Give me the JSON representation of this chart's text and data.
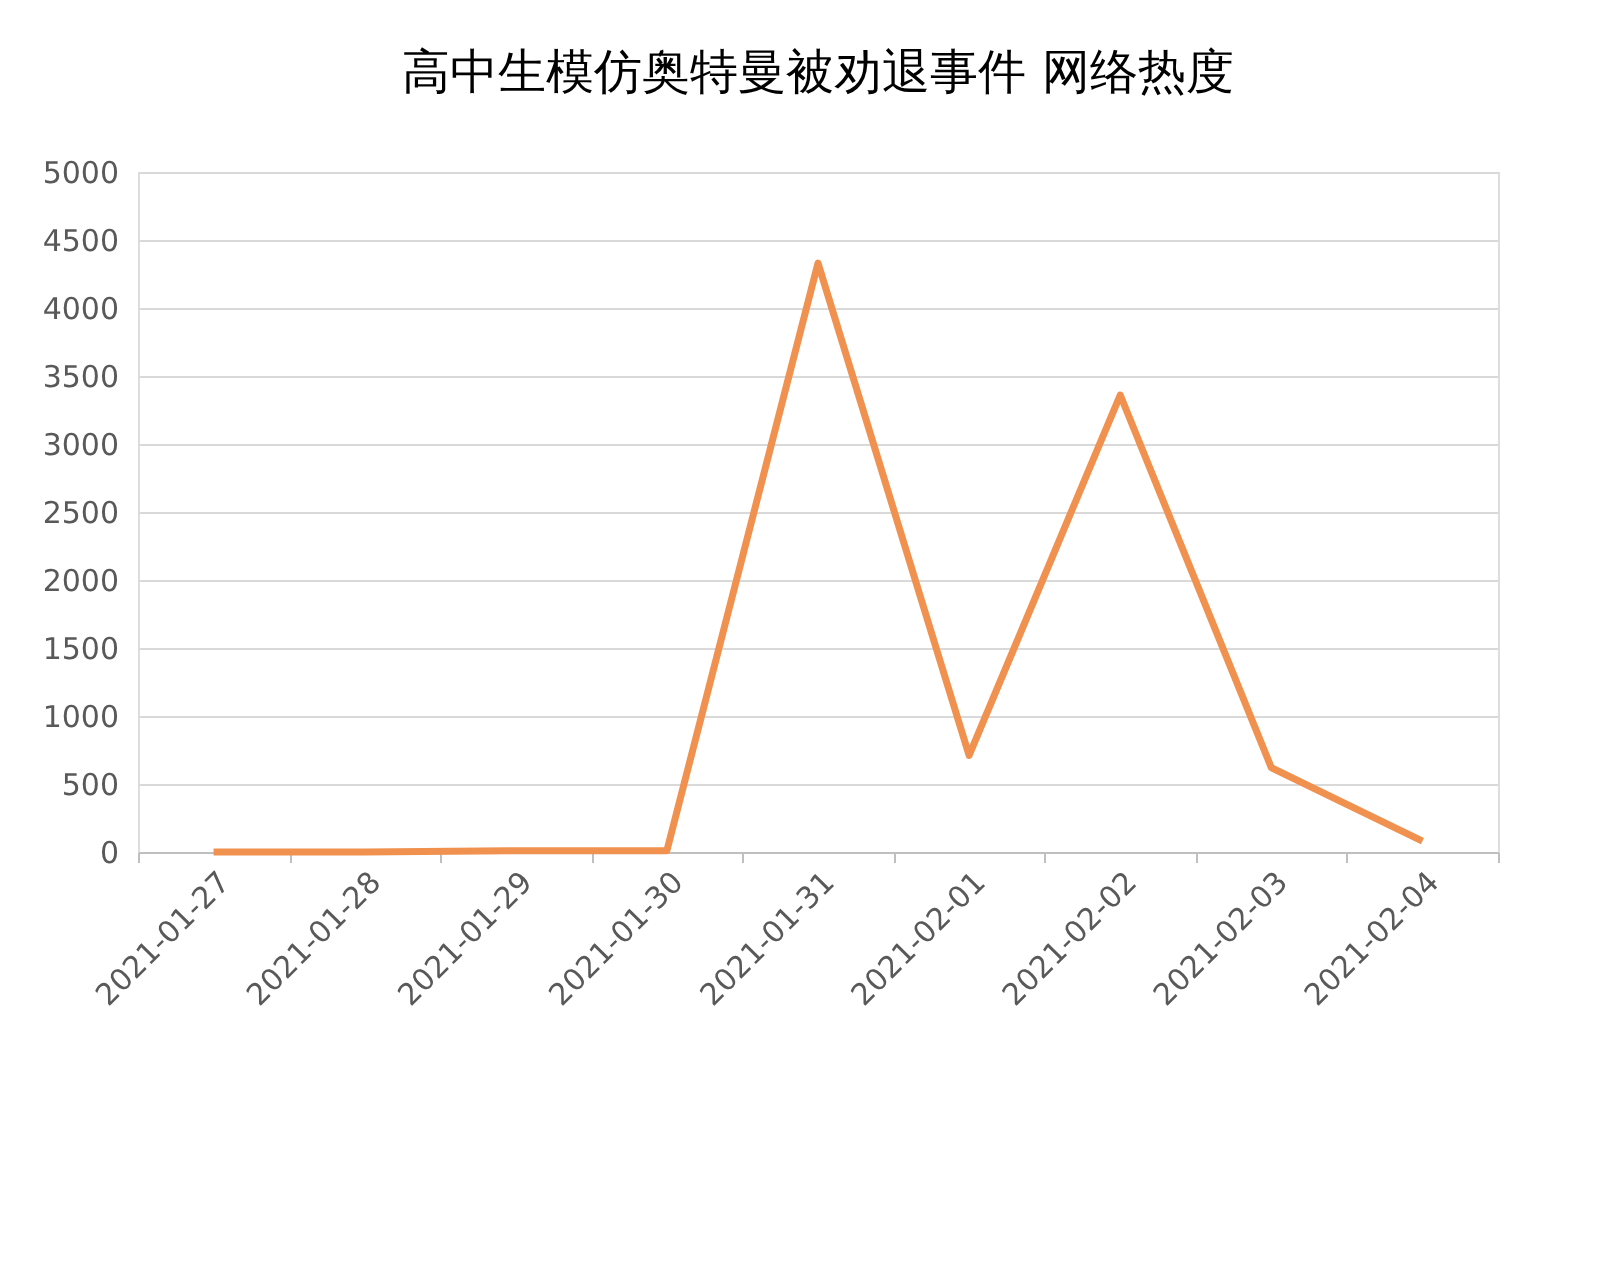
{
  "chart_data": {
    "type": "line",
    "title": "高中生模仿奥特曼被劝退事件 网络热度",
    "categories": [
      "2021-01-27",
      "2021-01-28",
      "2021-01-29",
      "2021-01-30",
      "2021-01-31",
      "2021-02-01",
      "2021-02-02",
      "2021-02-03",
      "2021-02-04"
    ],
    "series": [
      {
        "color": "#f0914f",
        "values": [
          0,
          0,
          10,
          10,
          4330,
          710,
          3360,
          620,
          80
        ]
      }
    ],
    "ylim": [
      0,
      5000
    ],
    "yticks": [
      0,
      500,
      1000,
      1500,
      2000,
      2500,
      3000,
      3500,
      4000,
      4500,
      5000
    ],
    "grid": "y",
    "marker": "none",
    "line_style": "solid"
  }
}
